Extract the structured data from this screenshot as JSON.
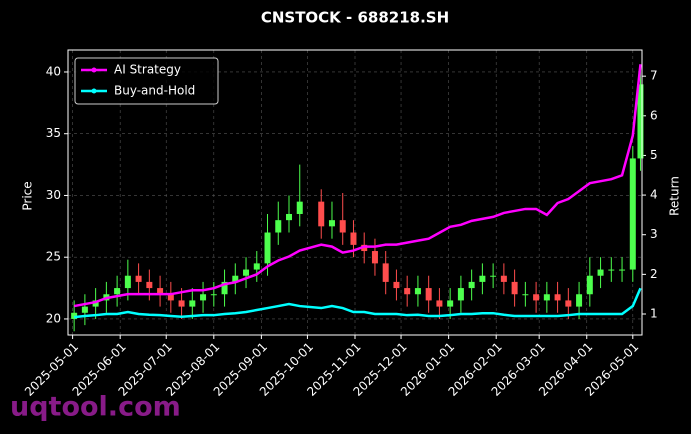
{
  "chart_data": {
    "type": "candlestick",
    "title": "CNSTOCK - 688218.SH",
    "ylabel": "Price",
    "y2label": "Return",
    "watermark": "uqtool.com",
    "x": [
      "2025-05-02",
      "2025-05-09",
      "2025-05-16",
      "2025-05-23",
      "2025-05-30",
      "2025-06-06",
      "2025-06-13",
      "2025-06-20",
      "2025-06-27",
      "2025-07-04",
      "2025-07-11",
      "2025-07-18",
      "2025-07-25",
      "2025-08-01",
      "2025-08-08",
      "2025-08-15",
      "2025-08-22",
      "2025-08-29",
      "2025-09-05",
      "2025-09-12",
      "2025-09-19",
      "2025-09-26",
      "2025-10-10",
      "2025-10-17",
      "2025-10-24",
      "2025-10-31",
      "2025-11-07",
      "2025-11-14",
      "2025-11-21",
      "2025-11-28",
      "2025-12-05",
      "2025-12-12",
      "2025-12-19",
      "2025-12-26",
      "2026-01-02",
      "2026-01-09",
      "2026-01-16",
      "2026-01-23",
      "2026-01-30",
      "2026-02-06",
      "2026-02-13",
      "2026-02-20",
      "2026-02-27",
      "2026-03-06",
      "2026-03-13",
      "2026-03-20",
      "2026-03-27",
      "2026-04-03",
      "2026-04-10",
      "2026-04-17",
      "2026-04-24",
      "2026-05-01",
      "2026-05-06"
    ],
    "open": [
      20.0,
      20.5,
      21.0,
      21.5,
      22.0,
      22.5,
      23.5,
      23.0,
      22.5,
      22.0,
      21.5,
      21.0,
      21.5,
      22.0,
      22.0,
      23.0,
      23.5,
      24.0,
      24.5,
      27.0,
      28.0,
      28.5,
      29.5,
      27.5,
      28.0,
      27.0,
      26.0,
      25.5,
      24.5,
      23.0,
      22.5,
      22.0,
      22.5,
      21.5,
      21.0,
      21.5,
      22.5,
      23.0,
      23.5,
      23.5,
      23.0,
      22.0,
      22.0,
      21.5,
      22.0,
      21.5,
      21.0,
      22.0,
      23.5,
      24.0,
      24.0,
      24.0,
      33.0
    ],
    "high": [
      21.5,
      22,
      22.5,
      23,
      23.5,
      24.8,
      24.5,
      24,
      23.5,
      23,
      22.5,
      22.5,
      23,
      23,
      24,
      24.5,
      25,
      25.5,
      28.5,
      29.5,
      30,
      32.5,
      30.5,
      29.5,
      30.2,
      28,
      27,
      26.5,
      25.5,
      24,
      23.5,
      23.5,
      23.5,
      22.5,
      22.5,
      23.5,
      24,
      24.5,
      24.5,
      24.5,
      24,
      23,
      23,
      23,
      23,
      22.5,
      23,
      25,
      25,
      25,
      25,
      34,
      40.5
    ],
    "low": [
      19,
      19.5,
      20,
      20.5,
      21,
      21.5,
      22,
      21.5,
      21,
      20.5,
      20,
      20,
      20.5,
      21,
      21,
      22,
      22.5,
      23,
      23.5,
      26,
      27,
      27.5,
      26.5,
      26.5,
      26,
      25,
      24.5,
      23.5,
      22,
      21.5,
      21,
      21,
      20.5,
      20,
      20,
      20.5,
      21.5,
      22,
      22.5,
      22,
      21,
      21,
      20.5,
      20.5,
      20.5,
      20,
      20,
      21,
      22.5,
      23,
      23,
      23,
      32
    ],
    "close": [
      20.5,
      21.0,
      21.5,
      22.0,
      22.5,
      23.5,
      23.0,
      22.5,
      22.0,
      21.5,
      21.0,
      21.5,
      22.0,
      22.0,
      23.0,
      23.5,
      24.0,
      24.5,
      27.0,
      28.0,
      28.5,
      29.5,
      27.5,
      28.0,
      27.0,
      26.0,
      25.5,
      24.5,
      23.0,
      22.5,
      22.0,
      22.5,
      21.5,
      21.0,
      21.5,
      22.5,
      23.0,
      23.5,
      23.5,
      23.0,
      22.0,
      22.0,
      21.5,
      22.0,
      21.5,
      21.0,
      22.0,
      23.5,
      24.0,
      24.0,
      24.0,
      33.0,
      39.0
    ],
    "up_color": "#4dff4d",
    "down_color": "#ff4d4d",
    "series": [
      {
        "name": "AI Strategy",
        "color": "#ff00ff",
        "axis": "y2",
        "values": [
          1.2,
          1.25,
          1.3,
          1.4,
          1.45,
          1.5,
          1.5,
          1.5,
          1.5,
          1.5,
          1.55,
          1.6,
          1.6,
          1.65,
          1.75,
          1.8,
          1.9,
          2.0,
          2.2,
          2.35,
          2.45,
          2.6,
          2.75,
          2.7,
          2.55,
          2.6,
          2.7,
          2.7,
          2.75,
          2.75,
          2.8,
          2.85,
          2.9,
          3.05,
          3.2,
          3.25,
          3.35,
          3.4,
          3.45,
          3.55,
          3.6,
          3.65,
          3.65,
          3.5,
          3.8,
          3.9,
          4.1,
          4.3,
          4.35,
          4.4,
          4.5,
          5.5,
          7.3
        ]
      },
      {
        "name": "Buy-and-Hold",
        "color": "#00ffff",
        "axis": "y2",
        "values": [
          0.92,
          0.95,
          0.97,
          1.0,
          1.0,
          1.05,
          1.0,
          0.98,
          0.97,
          0.95,
          0.93,
          0.95,
          0.97,
          0.97,
          1.0,
          1.02,
          1.05,
          1.1,
          1.15,
          1.2,
          1.25,
          1.2,
          1.15,
          1.2,
          1.15,
          1.05,
          1.05,
          1.0,
          1.0,
          1.0,
          0.97,
          0.98,
          0.95,
          0.95,
          0.97,
          1.0,
          1.0,
          1.02,
          1.02,
          0.98,
          0.95,
          0.95,
          0.95,
          0.95,
          0.95,
          0.97,
          1.0,
          1.0,
          1.0,
          1.0,
          1.0,
          1.2,
          1.65
        ]
      }
    ],
    "xlim": [
      "2025-04-28",
      "2026-05-07"
    ],
    "xticks": [
      "2025-05-01",
      "2025-06-01",
      "2025-07-01",
      "2025-08-01",
      "2025-09-01",
      "2025-10-01",
      "2025-11-01",
      "2025-12-01",
      "2026-01-01",
      "2026-02-01",
      "2026-03-01",
      "2026-04-01",
      "2026-05-01"
    ],
    "ylim": [
      18.7,
      41.78
    ],
    "yticks": [
      20,
      25,
      30,
      35,
      40
    ],
    "y2lim": [
      0.47,
      7.66
    ],
    "y2ticks": [
      1,
      2,
      3,
      4,
      5,
      6,
      7
    ],
    "grid": true,
    "legend": "upper left"
  }
}
